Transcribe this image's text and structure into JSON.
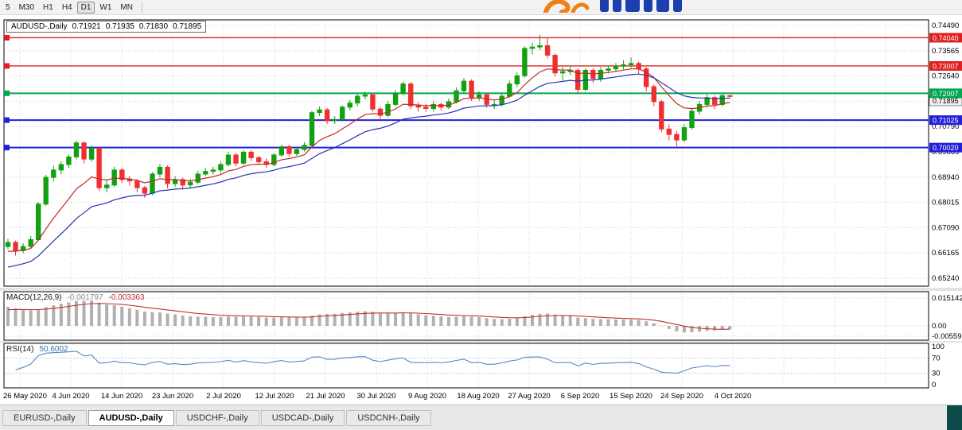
{
  "toolbar": {
    "timeframes": [
      "5",
      "M30",
      "H1",
      "H4",
      "D1",
      "W1",
      "MN"
    ],
    "active_timeframe": "D1"
  },
  "chart": {
    "symbol_period": "AUDUSD-,Daily",
    "open": "0.71921",
    "high": "0.71935",
    "low": "0.71830",
    "close": "0.71895"
  },
  "macd": {
    "label": "MACD(12,26,9)",
    "main_value": "-0.001797",
    "signal_value": "-0.003363",
    "axis": [
      "0.015142",
      "0.00",
      "-0.005595"
    ]
  },
  "rsi": {
    "label": "RSI(14)",
    "value": "50.6002",
    "axis": [
      "100",
      "70",
      "30",
      "0"
    ]
  },
  "tabs": {
    "items": [
      "EURUSD-,Daily",
      "AUDUSD-,Daily",
      "USDCHF-,Daily",
      "USDCAD-,Daily",
      "USDCNH-,Daily"
    ],
    "active_index": 1
  },
  "chart_data": {
    "type": "candlestick",
    "symbol": "AUDUSD",
    "period": "Daily",
    "price_axis_ticks": [
      "0.74490",
      "0.73565",
      "0.72640",
      "0.71715",
      "0.70790",
      "0.69865",
      "0.68940",
      "0.68015",
      "0.67090",
      "0.66165",
      "0.65240"
    ],
    "date_ticks": [
      "26 May 2020",
      "4 Jun 2020",
      "14 Jun 2020",
      "23 Jun 2020",
      "2 Jul 2020",
      "12 Jul 2020",
      "21 Jul 2020",
      "30 Jul 2020",
      "9 Aug 2020",
      "18 Aug 2020",
      "27 Aug 2020",
      "6 Sep 2020",
      "15 Sep 2020",
      "24 Sep 2020",
      "4 Oct 2020"
    ],
    "levels": [
      {
        "price": 0.7404,
        "label": "0.74040",
        "color": "red"
      },
      {
        "price": 0.73007,
        "label": "0.73007",
        "color": "red"
      },
      {
        "price": 0.72007,
        "label": "0.72007",
        "color": "green"
      },
      {
        "price": 0.71025,
        "label": "0.71025",
        "color": "blue"
      },
      {
        "price": 0.7002,
        "label": "0.70020",
        "color": "blue"
      }
    ],
    "colors": {
      "candle_up": "#12a112",
      "candle_down": "#f03030",
      "ma_fast": "#c62828",
      "ma_slow": "#2832b4",
      "level_red": "#e02020",
      "level_green": "#00a84e",
      "level_blue": "#2020dd",
      "grid": "#d6d6d6",
      "macd_hist": "#b0b0b0",
      "macd_signal": "#c03333",
      "rsi_line": "#5a87c5"
    },
    "candles": [
      [
        0.664,
        0.6668,
        0.663,
        0.6655
      ],
      [
        0.6655,
        0.6662,
        0.6607,
        0.6625
      ],
      [
        0.6625,
        0.6652,
        0.6615,
        0.664
      ],
      [
        0.664,
        0.6678,
        0.6632,
        0.6665
      ],
      [
        0.6665,
        0.6803,
        0.666,
        0.6795
      ],
      [
        0.6795,
        0.6902,
        0.6788,
        0.6893
      ],
      [
        0.6893,
        0.6936,
        0.6878,
        0.692
      ],
      [
        0.692,
        0.6952,
        0.6904,
        0.694
      ],
      [
        0.694,
        0.6977,
        0.6928,
        0.6968
      ],
      [
        0.6968,
        0.7027,
        0.6958,
        0.7019
      ],
      [
        0.7019,
        0.7024,
        0.6944,
        0.696
      ],
      [
        0.696,
        0.701,
        0.695,
        0.7
      ],
      [
        0.7,
        0.7006,
        0.6843,
        0.6855
      ],
      [
        0.6855,
        0.6882,
        0.6838,
        0.6865
      ],
      [
        0.6865,
        0.6932,
        0.6858,
        0.692
      ],
      [
        0.692,
        0.6928,
        0.6872,
        0.6885
      ],
      [
        0.6885,
        0.6897,
        0.6863,
        0.688
      ],
      [
        0.688,
        0.6887,
        0.6838,
        0.6855
      ],
      [
        0.6855,
        0.6862,
        0.6818,
        0.6835
      ],
      [
        0.6835,
        0.6912,
        0.6828,
        0.6905
      ],
      [
        0.6905,
        0.6942,
        0.6893,
        0.693
      ],
      [
        0.693,
        0.6937,
        0.6853,
        0.687
      ],
      [
        0.687,
        0.6897,
        0.6858,
        0.6885
      ],
      [
        0.6885,
        0.6892,
        0.6848,
        0.6865
      ],
      [
        0.6865,
        0.6887,
        0.6853,
        0.6875
      ],
      [
        0.6875,
        0.6917,
        0.6868,
        0.6905
      ],
      [
        0.6905,
        0.6927,
        0.6898,
        0.6915
      ],
      [
        0.6915,
        0.6932,
        0.6903,
        0.692
      ],
      [
        0.692,
        0.6952,
        0.6908,
        0.694
      ],
      [
        0.694,
        0.6987,
        0.6933,
        0.6975
      ],
      [
        0.6975,
        0.6982,
        0.6933,
        0.6945
      ],
      [
        0.6945,
        0.6992,
        0.6938,
        0.6985
      ],
      [
        0.6985,
        0.6992,
        0.6953,
        0.6965
      ],
      [
        0.6965,
        0.6972,
        0.6938,
        0.695
      ],
      [
        0.695,
        0.6962,
        0.6928,
        0.694
      ],
      [
        0.694,
        0.6982,
        0.6933,
        0.6975
      ],
      [
        0.6975,
        0.7012,
        0.6968,
        0.7005
      ],
      [
        0.7005,
        0.7012,
        0.6968,
        0.698
      ],
      [
        0.698,
        0.7002,
        0.6972,
        0.6995
      ],
      [
        0.6995,
        0.7022,
        0.6988,
        0.701
      ],
      [
        0.701,
        0.7137,
        0.7004,
        0.713
      ],
      [
        0.713,
        0.7152,
        0.7118,
        0.714
      ],
      [
        0.714,
        0.7147,
        0.7088,
        0.71
      ],
      [
        0.71,
        0.7117,
        0.7088,
        0.7105
      ],
      [
        0.7105,
        0.7157,
        0.7098,
        0.715
      ],
      [
        0.715,
        0.7177,
        0.7138,
        0.7165
      ],
      [
        0.7165,
        0.7202,
        0.7153,
        0.719
      ],
      [
        0.719,
        0.7207,
        0.7178,
        0.7195
      ],
      [
        0.7195,
        0.7202,
        0.7133,
        0.7143
      ],
      [
        0.7143,
        0.7152,
        0.7103,
        0.712
      ],
      [
        0.712,
        0.7172,
        0.7113,
        0.716
      ],
      [
        0.716,
        0.7212,
        0.7153,
        0.72
      ],
      [
        0.72,
        0.7243,
        0.7193,
        0.7235
      ],
      [
        0.7235,
        0.7242,
        0.7143,
        0.7155
      ],
      [
        0.7155,
        0.7167,
        0.7133,
        0.715
      ],
      [
        0.715,
        0.7162,
        0.7133,
        0.7145
      ],
      [
        0.7145,
        0.7172,
        0.7133,
        0.716
      ],
      [
        0.716,
        0.7167,
        0.7138,
        0.715
      ],
      [
        0.715,
        0.7182,
        0.7143,
        0.717
      ],
      [
        0.717,
        0.7222,
        0.7163,
        0.721
      ],
      [
        0.721,
        0.7257,
        0.7198,
        0.7245
      ],
      [
        0.7245,
        0.7252,
        0.7173,
        0.7185
      ],
      [
        0.7185,
        0.7207,
        0.7173,
        0.7195
      ],
      [
        0.7195,
        0.7202,
        0.7148,
        0.716
      ],
      [
        0.716,
        0.7177,
        0.7143,
        0.716
      ],
      [
        0.716,
        0.7202,
        0.7153,
        0.719
      ],
      [
        0.719,
        0.7247,
        0.7183,
        0.7235
      ],
      [
        0.7235,
        0.7277,
        0.7223,
        0.7265
      ],
      [
        0.7265,
        0.7372,
        0.7258,
        0.7365
      ],
      [
        0.7365,
        0.7387,
        0.7343,
        0.737
      ],
      [
        0.737,
        0.7414,
        0.7358,
        0.7375
      ],
      [
        0.7375,
        0.7406,
        0.7328,
        0.734
      ],
      [
        0.734,
        0.7347,
        0.7263,
        0.7275
      ],
      [
        0.7275,
        0.7297,
        0.7248,
        0.728
      ],
      [
        0.728,
        0.7302,
        0.7268,
        0.7285
      ],
      [
        0.7285,
        0.7292,
        0.7203,
        0.7215
      ],
      [
        0.7215,
        0.7292,
        0.7208,
        0.7285
      ],
      [
        0.7285,
        0.7292,
        0.7238,
        0.7255
      ],
      [
        0.7255,
        0.7297,
        0.7243,
        0.7285
      ],
      [
        0.7285,
        0.7302,
        0.7273,
        0.729
      ],
      [
        0.729,
        0.7312,
        0.7278,
        0.73
      ],
      [
        0.73,
        0.7322,
        0.7288,
        0.7305
      ],
      [
        0.7305,
        0.7332,
        0.7293,
        0.731
      ],
      [
        0.731,
        0.7317,
        0.7273,
        0.729
      ],
      [
        0.729,
        0.7297,
        0.7208,
        0.7225
      ],
      [
        0.7225,
        0.7232,
        0.7153,
        0.717
      ],
      [
        0.717,
        0.7177,
        0.7058,
        0.707
      ],
      [
        0.707,
        0.7087,
        0.7028,
        0.705
      ],
      [
        0.705,
        0.7062,
        0.7006,
        0.703
      ],
      [
        0.703,
        0.7087,
        0.7023,
        0.7075
      ],
      [
        0.7075,
        0.7147,
        0.7068,
        0.7135
      ],
      [
        0.7135,
        0.7172,
        0.7123,
        0.716
      ],
      [
        0.716,
        0.7197,
        0.7148,
        0.7185
      ],
      [
        0.7185,
        0.7192,
        0.7143,
        0.716
      ],
      [
        0.716,
        0.7198,
        0.7153,
        0.7192
      ],
      [
        0.71921,
        0.71935,
        0.7183,
        0.71895
      ]
    ]
  }
}
